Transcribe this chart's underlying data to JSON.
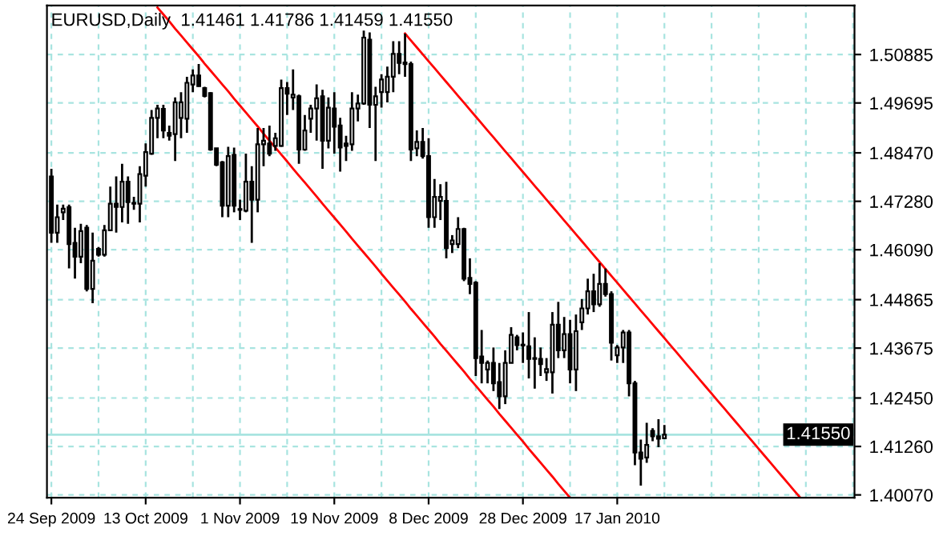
{
  "chart_data": {
    "type": "candlestick",
    "title": "EURUSD,Daily  1.41461 1.41786 1.41459 1.41550",
    "color": "#000000",
    "categories": [
      "24 Sep 2009",
      null,
      null,
      null,
      null,
      null,
      null,
      null,
      null,
      null,
      null,
      null,
      null,
      null,
      null,
      null,
      "13 Oct 2009",
      null,
      null,
      null,
      null,
      null,
      null,
      null,
      null,
      null,
      null,
      null,
      null,
      null,
      null,
      null,
      "1 Nov 2009",
      null,
      null,
      null,
      null,
      null,
      null,
      null,
      null,
      null,
      null,
      null,
      null,
      null,
      null,
      null,
      "19 Nov 2009",
      null,
      null,
      null,
      null,
      null,
      null,
      null,
      null,
      null,
      null,
      null,
      null,
      null,
      null,
      null,
      "8 Dec 2009",
      null,
      null,
      null,
      null,
      null,
      null,
      null,
      null,
      null,
      null,
      null,
      null,
      null,
      null,
      null,
      "28 Dec 2009",
      null,
      null,
      null,
      null,
      null,
      null,
      null,
      null,
      null,
      null,
      null,
      null,
      null,
      null,
      null,
      "17 Jan 2010",
      null,
      null,
      null,
      null,
      null,
      null,
      null,
      null,
      null,
      null,
      null,
      null,
      null,
      null,
      null,
      null,
      null,
      null,
      null,
      null,
      null,
      null,
      null,
      null,
      null,
      null,
      null,
      null,
      null,
      null,
      null,
      null,
      null,
      null,
      null,
      null,
      null,
      null,
      null,
      null
    ],
    "ohlc": [
      [
        1.4789,
        1.4808,
        1.4626,
        1.4651
      ],
      [
        1.4651,
        1.472,
        1.4626,
        1.4689
      ],
      [
        1.4701,
        1.472,
        1.4682,
        1.471
      ],
      [
        1.4714,
        1.472,
        1.4563,
        1.4623
      ],
      [
        1.4626,
        1.4663,
        1.4538,
        1.4592
      ],
      [
        1.4592,
        1.4673,
        1.4576,
        1.4655
      ],
      [
        1.4663,
        1.467,
        1.4507,
        1.4513
      ],
      [
        1.4513,
        1.4651,
        1.4478,
        1.4582
      ],
      [
        1.4611,
        1.4616,
        1.4592,
        1.4597
      ],
      [
        1.4597,
        1.467,
        1.4592,
        1.4657
      ],
      [
        1.4657,
        1.4764,
        1.4655,
        1.4722
      ],
      [
        1.4722,
        1.4789,
        1.4651,
        1.4714
      ],
      [
        1.4714,
        1.482,
        1.4676,
        1.4776
      ],
      [
        1.4776,
        1.4789,
        1.4673,
        1.4726
      ],
      [
        1.4722,
        1.4739,
        1.4707,
        1.4724
      ],
      [
        1.4722,
        1.4814,
        1.4676,
        1.4795
      ],
      [
        1.4791,
        1.487,
        1.4764,
        1.4849
      ],
      [
        1.4845,
        1.4952,
        1.4842,
        1.4933
      ],
      [
        1.4933,
        1.4965,
        1.4883,
        1.4956
      ],
      [
        1.4955,
        1.4965,
        1.4883,
        1.4902
      ],
      [
        1.4896,
        1.4914,
        1.4877,
        1.4889
      ],
      [
        1.4893,
        1.4983,
        1.4827,
        1.4971
      ],
      [
        1.4933,
        1.4996,
        1.4883,
        1.4971
      ],
      [
        1.4931,
        1.5034,
        1.4896,
        1.5019
      ],
      [
        1.5015,
        1.5052,
        1.4996,
        1.5037
      ],
      [
        1.5037,
        1.5065,
        1.5009,
        1.5011
      ],
      [
        1.5006,
        1.5009,
        1.4983,
        1.4987
      ],
      [
        1.4994,
        1.4996,
        1.4852,
        1.4855
      ],
      [
        1.4858,
        1.4858,
        1.4814,
        1.4818
      ],
      [
        1.4824,
        1.4827,
        1.4689,
        1.4717
      ],
      [
        1.4717,
        1.4862,
        1.4689,
        1.4839
      ],
      [
        1.4842,
        1.486,
        1.4701,
        1.4717
      ],
      [
        1.4709,
        1.4732,
        1.4682,
        1.4707
      ],
      [
        1.4705,
        1.4845,
        1.4701,
        1.4776
      ],
      [
        1.4776,
        1.4814,
        1.4626,
        1.4732
      ],
      [
        1.4732,
        1.4908,
        1.4701,
        1.4868
      ],
      [
        1.4868,
        1.4908,
        1.4814,
        1.4877
      ],
      [
        1.487,
        1.4914,
        1.4839,
        1.4845
      ],
      [
        1.4864,
        1.4896,
        1.4852,
        1.4883
      ],
      [
        1.4864,
        1.5027,
        1.4862,
        1.5006
      ],
      [
        1.5006,
        1.5021,
        1.494,
        1.4992
      ],
      [
        1.4983,
        1.5052,
        1.4952,
        1.499
      ],
      [
        1.4986,
        1.499,
        1.482,
        1.4855
      ],
      [
        1.4855,
        1.494,
        1.4852,
        1.4902
      ],
      [
        1.4931,
        1.4965,
        1.4896,
        1.4956
      ],
      [
        1.4956,
        1.5015,
        1.4877,
        1.4981
      ],
      [
        1.4986,
        1.5002,
        1.4808,
        1.4877
      ],
      [
        1.4877,
        1.4983,
        1.4858,
        1.4958
      ],
      [
        1.4956,
        1.4996,
        1.4845,
        1.4911
      ],
      [
        1.4914,
        1.4933,
        1.4801,
        1.486
      ],
      [
        1.487,
        1.4889,
        1.4827,
        1.4864
      ],
      [
        1.4868,
        1.4996,
        1.4852,
        1.4956
      ],
      [
        1.4956,
        1.499,
        1.4924,
        1.4968
      ],
      [
        1.4968,
        1.5147,
        1.4965,
        1.513
      ],
      [
        1.5125,
        1.5143,
        1.4908,
        1.4965
      ],
      [
        1.4965,
        1.5009,
        1.4827,
        1.4986
      ],
      [
        1.4996,
        1.504,
        1.4958,
        1.5027
      ],
      [
        1.4996,
        1.5059,
        1.4971,
        1.5034
      ],
      [
        1.5034,
        1.5121,
        1.4996,
        1.509
      ],
      [
        1.509,
        1.5121,
        1.504,
        1.5068
      ],
      [
        1.5069,
        1.514,
        1.5034,
        1.5065
      ],
      [
        1.5065,
        1.5071,
        1.4827,
        1.4855
      ],
      [
        1.4858,
        1.4902,
        1.4839,
        1.4874
      ],
      [
        1.4874,
        1.4908,
        1.4833,
        1.4839
      ],
      [
        1.4839,
        1.4883,
        1.4663,
        1.4689
      ],
      [
        1.4689,
        1.4783,
        1.4663,
        1.4739
      ],
      [
        1.4729,
        1.477,
        1.4682,
        1.4739
      ],
      [
        1.4729,
        1.4776,
        1.4588,
        1.4613
      ],
      [
        1.4623,
        1.4645,
        1.4601,
        1.4632
      ],
      [
        1.4623,
        1.4689,
        1.4613,
        1.466
      ],
      [
        1.466,
        1.4663,
        1.4532,
        1.4538
      ],
      [
        1.454,
        1.4588,
        1.45,
        1.4525
      ],
      [
        1.4528,
        1.4532,
        1.4299,
        1.4343
      ],
      [
        1.4347,
        1.4412,
        1.4281,
        1.4331
      ],
      [
        1.4315,
        1.4337,
        1.4281,
        1.4331
      ],
      [
        1.4331,
        1.4369,
        1.4262,
        1.4281
      ],
      [
        1.4284,
        1.4331,
        1.4218,
        1.4249
      ],
      [
        1.4249,
        1.4362,
        1.423,
        1.4331
      ],
      [
        1.4331,
        1.4419,
        1.4331,
        1.44
      ],
      [
        1.4394,
        1.44,
        1.4362,
        1.4375
      ],
      [
        1.4376,
        1.4406,
        1.4331,
        1.4374
      ],
      [
        1.4372,
        1.4456,
        1.4293,
        1.4341
      ],
      [
        1.4343,
        1.4394,
        1.4268,
        1.4341
      ],
      [
        1.4341,
        1.4369,
        1.4299,
        1.4328
      ],
      [
        1.4308,
        1.4343,
        1.4287,
        1.4316
      ],
      [
        1.4308,
        1.4456,
        1.4256,
        1.4425
      ],
      [
        1.4425,
        1.4481,
        1.4343,
        1.4362
      ],
      [
        1.4362,
        1.4444,
        1.4343,
        1.4402
      ],
      [
        1.4402,
        1.4437,
        1.4281,
        1.4315
      ],
      [
        1.4315,
        1.445,
        1.4262,
        1.4409
      ],
      [
        1.4431,
        1.4488,
        1.4412,
        1.4465
      ],
      [
        1.4465,
        1.4538,
        1.445,
        1.4507
      ],
      [
        1.4507,
        1.455,
        1.4456,
        1.4475
      ],
      [
        1.4475,
        1.4576,
        1.4469,
        1.4525
      ],
      [
        1.4525,
        1.4563,
        1.4494,
        1.45
      ],
      [
        1.45,
        1.4507,
        1.4337,
        1.4381
      ],
      [
        1.435,
        1.4375,
        1.4331,
        1.4369
      ],
      [
        1.4369,
        1.4412,
        1.4331,
        1.4406
      ],
      [
        1.4406,
        1.4412,
        1.4249,
        1.4281
      ],
      [
        1.4281,
        1.4287,
        1.408,
        1.4111
      ],
      [
        1.4111,
        1.4143,
        1.403,
        1.4096
      ],
      [
        1.4099,
        1.4184,
        1.4086,
        1.413
      ],
      [
        1.4164,
        1.4171,
        1.4139,
        1.4151
      ],
      [
        1.4151,
        1.4193,
        1.4124,
        1.4145
      ],
      [
        1.41461,
        1.41786,
        1.41459,
        1.4155
      ],
      null,
      null,
      null,
      null,
      null,
      null,
      null,
      null,
      null,
      null,
      null,
      null,
      null,
      null,
      null,
      null,
      null,
      null,
      null,
      null,
      null,
      null,
      null,
      null,
      null,
      null,
      null,
      null,
      null,
      null,
      null,
      null
    ],
    "series": [
      {
        "type": "line",
        "color": "#ff0000",
        "values": [
          null,
          null,
          null,
          null,
          null,
          null,
          null,
          null,
          null,
          null,
          null,
          null,
          null,
          null,
          null,
          null,
          null,
          null,
          1.5204,
          1.5187,
          1.517,
          1.5152,
          1.5135,
          1.5118,
          1.5101,
          1.5084,
          1.5066,
          1.5049,
          1.5032,
          1.5015,
          1.4998,
          1.498,
          1.4963,
          1.4946,
          1.4929,
          1.4912,
          1.4894,
          1.4877,
          1.486,
          1.4843,
          1.4826,
          1.4808,
          1.4791,
          1.4774,
          1.4757,
          1.474,
          1.4722,
          1.4705,
          1.4688,
          1.4671,
          1.4654,
          1.4636,
          1.4619,
          1.4602,
          1.4585,
          1.4568,
          1.455,
          1.4533,
          1.4516,
          1.4499,
          1.4482,
          1.4464,
          1.4447,
          1.443,
          1.4413,
          1.4396,
          1.4378,
          1.4361,
          1.4344,
          1.4327,
          1.431,
          1.4292,
          1.4275,
          1.4258,
          1.4241,
          1.4224,
          1.4206,
          1.4189,
          1.4172,
          1.4155,
          1.4138,
          1.412,
          1.4103,
          1.4086,
          1.4069,
          1.4052,
          1.4034,
          1.4017,
          1.4,
          null,
          null,
          null,
          null,
          null,
          null,
          null,
          null,
          null,
          null,
          null,
          null,
          null,
          null,
          null,
          null,
          null,
          null,
          null,
          null,
          null,
          null,
          null,
          null,
          null,
          null,
          null,
          null,
          null,
          null,
          null,
          null,
          null,
          null,
          null,
          null,
          null,
          null,
          null,
          null,
          null,
          null,
          null,
          null,
          null,
          null,
          null,
          null
        ]
      },
      {
        "type": "line",
        "color": "#ff0000",
        "values": [
          null,
          null,
          null,
          null,
          null,
          null,
          null,
          null,
          null,
          null,
          null,
          null,
          null,
          null,
          null,
          null,
          null,
          null,
          null,
          null,
          null,
          null,
          null,
          null,
          null,
          null,
          null,
          null,
          null,
          null,
          null,
          null,
          null,
          null,
          null,
          null,
          null,
          null,
          null,
          null,
          null,
          null,
          null,
          null,
          null,
          null,
          null,
          null,
          null,
          null,
          null,
          null,
          null,
          null,
          null,
          null,
          null,
          null,
          null,
          null,
          1.514,
          1.5123,
          1.5106,
          1.5089,
          1.5072,
          1.5055,
          1.5038,
          1.5021,
          1.5004,
          1.4987,
          1.497,
          1.4953,
          1.4936,
          1.4919,
          1.4902,
          1.4885,
          1.4868,
          1.4851,
          1.4834,
          1.4817,
          1.48,
          1.4783,
          1.4766,
          1.4749,
          1.4732,
          1.4715,
          1.4698,
          1.4681,
          1.4664,
          1.4647,
          1.463,
          1.4613,
          1.4596,
          1.4579,
          1.4562,
          1.4545,
          1.4528,
          1.4511,
          1.4494,
          1.4477,
          1.446,
          1.4443,
          1.4426,
          1.4409,
          1.4392,
          1.4375,
          1.4358,
          1.4341,
          1.4324,
          1.4307,
          1.429,
          1.4273,
          1.4256,
          1.4239,
          1.4222,
          1.4205,
          1.4188,
          1.4171,
          1.4154,
          1.4137,
          1.412,
          1.4103,
          1.4086,
          1.4069,
          1.4052,
          1.4035,
          1.4018,
          1.4001,
          null,
          null,
          null,
          null,
          null,
          null,
          null,
          null,
          null
        ]
      }
    ],
    "ylim": [
      1.4,
      1.5209
    ],
    "yticks": [
      {
        "value": 1.4007,
        "label": "1.40070"
      },
      {
        "value": 1.4126,
        "label": "1.41260"
      },
      {
        "value": 1.4245,
        "label": "1.42450"
      },
      1.43675,
      1.44865,
      {
        "value": 1.4609,
        "label": "1.46090"
      },
      {
        "value": 1.4728,
        "label": "1.47280"
      },
      {
        "value": 1.4847,
        "label": "1.48470"
      },
      1.49695,
      1.50885
    ],
    "ref_lines": [
      {
        "axis": "y",
        "value": 1.4155,
        "label": "1.41550",
        "color": "#a8e4e0"
      }
    ],
    "grid": true
  }
}
